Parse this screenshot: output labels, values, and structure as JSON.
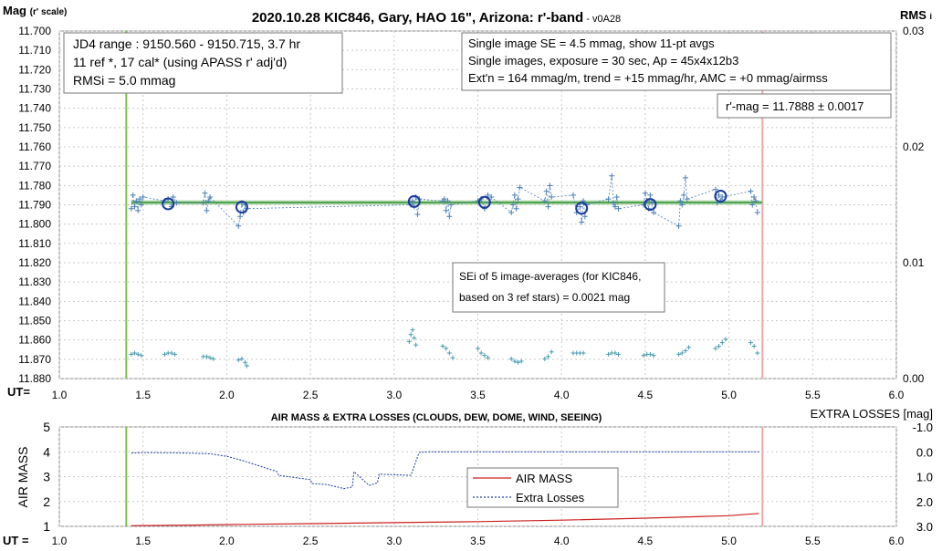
{
  "top_chart": {
    "title": "2020.10.28 KIC846, Gary, HAO 16\", Arizona: r'-band",
    "version": " - v0A28",
    "ylabel_main": "Mag",
    "ylabel_sub": "(r' scale)",
    "y2label": "RMS",
    "y2label_sub": "i",
    "xlabel": "UT=",
    "info_left": [
      "JD4 range : 9150.560 - 9150.715,  3.7  hr",
      "11 ref *, 17 cal* (using APASS r' adj'd)",
      "RMSi = 5.0 mmag"
    ],
    "info_right": [
      "Single image SE = 4.5 mmag, show  11-pt avgs",
      "Single images, exposure = 30 sec, Ap = 45x4x12b3",
      "Ext'n = 164 mmag/m, trend =  +15 mmag/hr, AMC = +0 mmag/airmss"
    ],
    "rmag": "r'-mag = 11.7888 ± 0.0017",
    "sei": [
      "SEi of 5 image-averages (for KIC846,",
      "based on 3 ref stars) = 0.0021 mag"
    ]
  },
  "bottom_chart": {
    "title": "AIR MASS & EXTRA LOSSES (CLOUDS, DEW, DOME, WIND, SEEING)",
    "ylabel": "AIR MASS",
    "y2label": "EXTRA LOSSES [mag]",
    "xlabel": "UT =",
    "legend": [
      "AIR MASS",
      "Extra Losses"
    ]
  },
  "chart_data": [
    {
      "type": "scatter",
      "title": "2020.10.28 KIC846, Gary, HAO 16\", Arizona: r'-band",
      "xlabel": "UT=",
      "ylabel": "Mag (r' scale)",
      "y2label": "RMSi",
      "xlim": [
        1.0,
        6.0
      ],
      "ylim": [
        11.7,
        11.88
      ],
      "y_inverted": true,
      "y2lim": [
        0.0,
        0.03
      ],
      "x_ticks": [
        1.0,
        1.5,
        2.0,
        2.5,
        3.0,
        3.5,
        4.0,
        4.5,
        5.0,
        5.5,
        6.0
      ],
      "x_tick_labels": [
        "1.0",
        "1.5",
        "2.0",
        "2.5",
        "3.0",
        "3.5",
        "4.0",
        "4.5",
        "5.0",
        "5.5",
        "6.0"
      ],
      "y_tick_labels": [
        "11.700",
        "11.710",
        "11.720",
        "11.730",
        "11.740",
        "11.750",
        "11.760",
        "11.770",
        "11.780",
        "11.790",
        "11.800",
        "11.810",
        "11.820",
        "11.830",
        "11.840",
        "11.850",
        "11.860",
        "11.870",
        "11.880"
      ],
      "y2_tick_labels": [
        "0.00",
        "0.01",
        "0.02",
        "0.03"
      ],
      "grid": true,
      "vlines": [
        {
          "x": 1.4,
          "color": "#7cc242"
        },
        {
          "x": 5.2,
          "color": "#f4a6a6"
        }
      ],
      "mean_line": {
        "y": 11.7888,
        "color": "#4fa54f"
      },
      "colors": {
        "single": "#4a7fb5",
        "avg": "#1a3a9a",
        "rms": "#4a9ab0",
        "mean": "#4fa54f"
      },
      "single_images": {
        "x": [
          1.43,
          1.44,
          1.45,
          1.46,
          1.47,
          1.48,
          1.49,
          1.5,
          1.63,
          1.65,
          1.67,
          1.68,
          1.7,
          1.86,
          1.87,
          1.88,
          1.89,
          1.9,
          2.07,
          2.08,
          2.09,
          2.1,
          2.11,
          2.12,
          3.1,
          3.11,
          3.12,
          3.13,
          3.14,
          3.15,
          3.29,
          3.3,
          3.31,
          3.32,
          3.33,
          3.34,
          3.5,
          3.52,
          3.54,
          3.56,
          3.57,
          3.58,
          3.7,
          3.71,
          3.72,
          3.73,
          3.74,
          3.75,
          3.9,
          3.91,
          3.92,
          3.93,
          3.94,
          4.07,
          4.09,
          4.11,
          4.12,
          4.13,
          4.14,
          4.15,
          4.28,
          4.3,
          4.31,
          4.32,
          4.33,
          4.34,
          4.49,
          4.5,
          4.51,
          4.52,
          4.53,
          4.54,
          4.55,
          4.7,
          4.71,
          4.72,
          4.73,
          4.74,
          4.75,
          4.92,
          4.93,
          4.94,
          4.95,
          4.96,
          5.13,
          5.14,
          5.15,
          5.16,
          5.17
        ],
        "y": [
          11.792,
          11.785,
          11.791,
          11.788,
          11.793,
          11.787,
          11.79,
          11.786,
          11.788,
          11.787,
          11.791,
          11.786,
          11.789,
          11.789,
          11.784,
          11.793,
          11.788,
          11.786,
          11.801,
          11.796,
          11.789,
          11.794,
          11.79,
          11.792,
          11.79,
          11.788,
          11.791,
          11.786,
          11.795,
          11.787,
          11.788,
          11.787,
          11.793,
          11.788,
          11.796,
          11.79,
          11.788,
          11.787,
          11.792,
          11.785,
          11.789,
          11.786,
          11.794,
          11.79,
          11.785,
          11.792,
          11.787,
          11.781,
          11.788,
          11.783,
          11.791,
          11.78,
          11.786,
          11.785,
          11.794,
          11.791,
          11.799,
          11.788,
          11.796,
          11.79,
          11.787,
          11.775,
          11.789,
          11.791,
          11.786,
          11.792,
          11.79,
          11.784,
          11.788,
          11.792,
          11.785,
          11.789,
          11.794,
          11.801,
          11.788,
          11.79,
          11.785,
          11.776,
          11.787,
          11.782,
          11.789,
          11.785,
          11.788,
          11.786,
          11.783,
          11.79,
          11.786,
          11.788,
          11.794
        ]
      },
      "image_averages": {
        "x": [
          1.65,
          2.09,
          3.12,
          3.54,
          4.12,
          4.53,
          4.95
        ],
        "y": [
          11.7895,
          11.7912,
          11.7883,
          11.7887,
          11.7918,
          11.7898,
          11.7855
        ]
      },
      "rmsi": {
        "x": [
          1.43,
          1.45,
          1.47,
          1.49,
          1.63,
          1.65,
          1.67,
          1.69,
          1.86,
          1.88,
          1.9,
          1.92,
          2.07,
          2.09,
          2.11,
          2.12,
          3.09,
          3.1,
          3.11,
          3.12,
          3.13,
          3.29,
          3.31,
          3.33,
          3.35,
          3.5,
          3.52,
          3.54,
          3.56,
          3.7,
          3.72,
          3.74,
          3.76,
          3.9,
          3.92,
          3.94,
          4.07,
          4.09,
          4.11,
          4.13,
          4.28,
          4.3,
          4.32,
          4.34,
          4.49,
          4.51,
          4.53,
          4.55,
          4.7,
          4.72,
          4.74,
          4.76,
          4.92,
          4.94,
          4.96,
          4.98,
          5.13,
          5.15,
          5.17
        ],
        "y": [
          0.0021,
          0.0022,
          0.0021,
          0.002,
          0.0021,
          0.0022,
          0.0022,
          0.0021,
          0.0019,
          0.0019,
          0.0018,
          0.0017,
          0.0016,
          0.0017,
          0.0014,
          0.0011,
          0.0032,
          0.0038,
          0.0042,
          0.0035,
          0.0029,
          0.0028,
          0.0026,
          0.0022,
          0.0018,
          0.0026,
          0.0022,
          0.002,
          0.0018,
          0.0017,
          0.0015,
          0.0014,
          0.0015,
          0.0017,
          0.0019,
          0.0023,
          0.0022,
          0.0022,
          0.0022,
          0.0022,
          0.0021,
          0.0022,
          0.0022,
          0.0021,
          0.002,
          0.0021,
          0.0021,
          0.002,
          0.0021,
          0.0022,
          0.0024,
          0.0027,
          0.0026,
          0.0028,
          0.0031,
          0.0034,
          0.0031,
          0.0028,
          0.0022
        ]
      }
    },
    {
      "type": "line",
      "title": "AIR MASS & EXTRA LOSSES (CLOUDS, DEW, DOME, WIND, SEEING)",
      "xlabel": "UT =",
      "ylabel": "AIR MASS",
      "y2label": "EXTRA LOSSES [mag]",
      "xlim": [
        1.0,
        6.0
      ],
      "ylim": [
        1,
        5
      ],
      "y2lim": [
        3.0,
        -1.0
      ],
      "x_ticks": [
        1.0,
        1.5,
        2.0,
        2.5,
        3.0,
        3.5,
        4.0,
        4.5,
        5.0,
        5.5,
        6.0
      ],
      "x_tick_labels": [
        "1.0",
        "1.5",
        "2.0",
        "2.5",
        "3.0",
        "3.5",
        "4.0",
        "4.5",
        "5.0",
        "5.5",
        "6.0"
      ],
      "y_tick_labels": [
        "1",
        "2",
        "3",
        "4",
        "5"
      ],
      "y2_tick_labels": [
        "-1.0",
        "0.0",
        "1.0",
        "2.0",
        "3.0"
      ],
      "grid": true,
      "legend_position": "center-right",
      "vlines": [
        {
          "x": 1.4,
          "color": "#7cc242"
        },
        {
          "x": 5.2,
          "color": "#f4a6a6"
        }
      ],
      "series": [
        {
          "name": "AIR MASS",
          "color": "#cc2020",
          "x": [
            1.43,
            1.8,
            2.1,
            2.5,
            3.0,
            3.5,
            4.0,
            4.5,
            5.0,
            5.18
          ],
          "y": [
            1.03,
            1.05,
            1.08,
            1.11,
            1.15,
            1.19,
            1.25,
            1.33,
            1.43,
            1.52
          ]
        },
        {
          "name": "Extra Losses",
          "color": "#1a3a9a",
          "x": [
            1.43,
            1.5,
            1.7,
            1.9,
            2.0,
            2.1,
            2.2,
            2.3,
            2.31,
            2.5,
            2.51,
            2.6,
            2.7,
            2.75,
            2.76,
            2.85,
            2.9,
            2.91,
            3.1,
            3.15,
            3.2,
            3.5,
            4.0,
            4.5,
            5.0,
            5.18
          ],
          "y": [
            0.05,
            0.03,
            0.04,
            0.08,
            0.18,
            0.36,
            0.58,
            0.8,
            0.95,
            1.12,
            1.28,
            1.32,
            1.48,
            1.42,
            0.8,
            1.35,
            1.25,
            0.9,
            0.95,
            0.02,
            0.0,
            0.0,
            0.0,
            0.0,
            0.0,
            0.0
          ]
        }
      ]
    }
  ]
}
